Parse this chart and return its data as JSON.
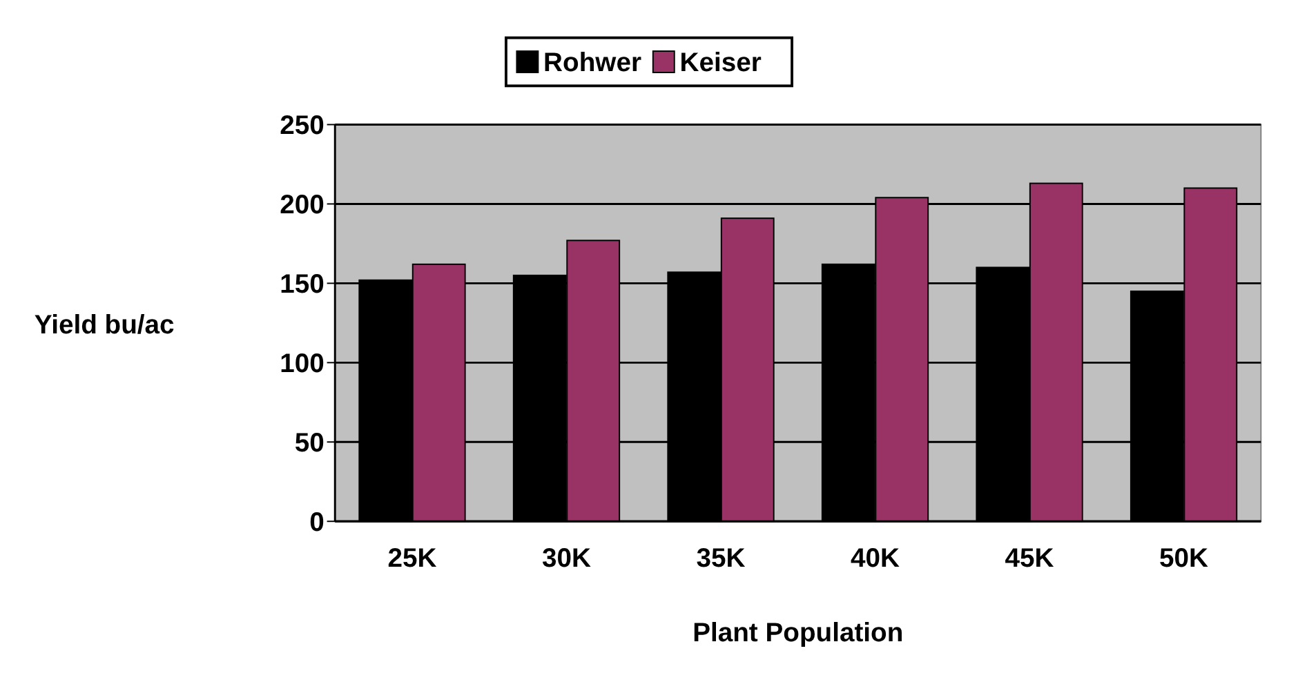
{
  "chart_data": {
    "type": "bar",
    "xlabel": "Plant Population",
    "ylabel": "Yield bu/ac",
    "categories": [
      "25K",
      "30K",
      "35K",
      "40K",
      "45K",
      "50K"
    ],
    "series": [
      {
        "name": "Rohwer",
        "color": "#000000",
        "values": [
          152,
          155,
          157,
          162,
          160,
          145
        ]
      },
      {
        "name": "Keiser",
        "color": "#993366",
        "values": [
          162,
          177,
          191,
          204,
          213,
          210
        ]
      }
    ],
    "ylim": [
      0,
      250
    ],
    "yticks": [
      0,
      50,
      100,
      150,
      200,
      250
    ],
    "grid": "y",
    "legend": "top"
  }
}
